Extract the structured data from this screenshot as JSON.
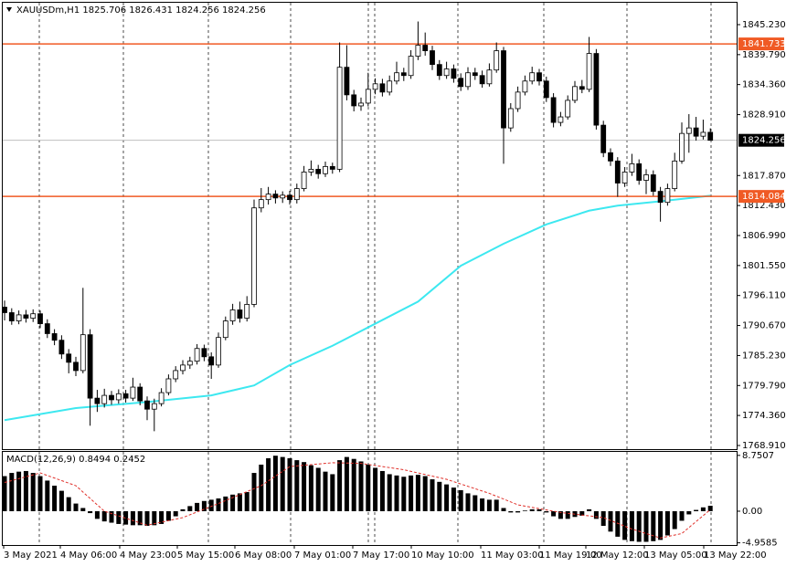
{
  "chart_data": [
    {
      "type": "candlestick",
      "title": "XAUUSDm,H1  1825.706 1826.431 1824.256 1824.256",
      "ylim": [
        1768.25,
        1849.2
      ],
      "yticks": [
        {
          "value": 1845.23,
          "label": "1845.230"
        },
        {
          "value": 1839.79,
          "label": "1839.790"
        },
        {
          "value": 1834.36,
          "label": "1834.360"
        },
        {
          "value": 1828.91,
          "label": "1828.910"
        },
        {
          "value": 1817.87,
          "label": "1817.870"
        },
        {
          "value": 1812.43,
          "label": "1812.430"
        },
        {
          "value": 1806.99,
          "label": "1806.990"
        },
        {
          "value": 1801.55,
          "label": "1801.550"
        },
        {
          "value": 1796.11,
          "label": "1796.110"
        },
        {
          "value": 1790.67,
          "label": "1790.670"
        },
        {
          "value": 1785.23,
          "label": "1785.230"
        },
        {
          "value": 1779.79,
          "label": "1779.790"
        },
        {
          "value": 1774.36,
          "label": "1774.360"
        },
        {
          "value": 1768.91,
          "label": "1768.910"
        }
      ],
      "up_color": "#ffffff",
      "down_color": "#000000",
      "candles": [
        [
          1794.0,
          1795.2,
          1791.6,
          1793.0
        ],
        [
          1793.0,
          1793.8,
          1790.8,
          1791.5
        ],
        [
          1791.5,
          1793.4,
          1790.9,
          1792.6
        ],
        [
          1792.6,
          1793.5,
          1791.2,
          1792.0
        ],
        [
          1792.0,
          1793.6,
          1791.3,
          1792.8
        ],
        [
          1792.8,
          1793.4,
          1790.2,
          1791.0
        ],
        [
          1791.0,
          1791.8,
          1788.4,
          1789.2
        ],
        [
          1789.2,
          1790.0,
          1787.1,
          1788.0
        ],
        [
          1788.0,
          1788.9,
          1784.6,
          1785.5
        ],
        [
          1785.5,
          1786.4,
          1782.0,
          1784.0
        ],
        [
          1784.0,
          1785.0,
          1781.5,
          1782.5
        ],
        [
          1782.5,
          1797.5,
          1782.0,
          1789.0
        ],
        [
          1789.0,
          1790.0,
          1772.5,
          1777.5
        ],
        [
          1777.5,
          1779.0,
          1775.0,
          1776.5
        ],
        [
          1776.5,
          1779.2,
          1775.8,
          1778.0
        ],
        [
          1778.0,
          1778.8,
          1776.3,
          1777.2
        ],
        [
          1777.2,
          1779.1,
          1776.5,
          1778.3
        ],
        [
          1778.3,
          1779.0,
          1776.7,
          1777.5
        ],
        [
          1777.5,
          1781.2,
          1777.0,
          1779.5
        ],
        [
          1779.5,
          1780.2,
          1776.2,
          1777.0
        ],
        [
          1777.0,
          1777.8,
          1773.5,
          1775.5
        ],
        [
          1775.5,
          1777.4,
          1771.5,
          1776.5
        ],
        [
          1776.5,
          1779.3,
          1776.0,
          1778.5
        ],
        [
          1778.5,
          1781.8,
          1778.0,
          1781.0
        ],
        [
          1781.0,
          1783.3,
          1780.4,
          1782.5
        ],
        [
          1782.5,
          1784.4,
          1781.8,
          1783.5
        ],
        [
          1783.5,
          1785.0,
          1782.8,
          1784.2
        ],
        [
          1784.2,
          1787.3,
          1783.6,
          1786.5
        ],
        [
          1786.5,
          1787.2,
          1784.2,
          1785.0
        ],
        [
          1785.0,
          1785.8,
          1781.0,
          1783.5
        ],
        [
          1783.5,
          1789.4,
          1783.0,
          1788.5
        ],
        [
          1788.5,
          1792.3,
          1788.0,
          1791.5
        ],
        [
          1791.5,
          1794.6,
          1790.8,
          1793.5
        ],
        [
          1793.5,
          1795.0,
          1791.2,
          1792.0
        ],
        [
          1792.0,
          1796.0,
          1791.4,
          1794.5
        ],
        [
          1794.5,
          1813.5,
          1794.0,
          1812.0
        ],
        [
          1812.0,
          1815.6,
          1811.2,
          1813.5
        ],
        [
          1813.5,
          1815.8,
          1812.6,
          1814.5
        ],
        [
          1814.5,
          1815.2,
          1812.8,
          1813.8
        ],
        [
          1813.8,
          1815.0,
          1812.9,
          1814.3
        ],
        [
          1814.3,
          1815.1,
          1812.6,
          1813.5
        ],
        [
          1813.5,
          1816.4,
          1812.8,
          1815.5
        ],
        [
          1815.5,
          1819.6,
          1815.0,
          1818.5
        ],
        [
          1818.5,
          1820.6,
          1817.8,
          1819.0
        ],
        [
          1819.0,
          1819.8,
          1817.3,
          1818.2
        ],
        [
          1818.2,
          1820.4,
          1817.6,
          1819.5
        ],
        [
          1819.5,
          1820.2,
          1818.2,
          1819.0
        ],
        [
          1819.0,
          1842.0,
          1818.5,
          1837.5
        ],
        [
          1837.5,
          1841.5,
          1831.5,
          1832.5
        ],
        [
          1832.5,
          1833.4,
          1829.5,
          1830.5
        ],
        [
          1830.5,
          1832.0,
          1829.6,
          1831.0
        ],
        [
          1831.0,
          1836.5,
          1830.4,
          1833.5
        ],
        [
          1833.5,
          1835.5,
          1832.6,
          1834.5
        ],
        [
          1834.5,
          1835.4,
          1832.2,
          1833.0
        ],
        [
          1833.0,
          1836.0,
          1832.4,
          1835.0
        ],
        [
          1835.0,
          1838.5,
          1834.4,
          1836.5
        ],
        [
          1836.5,
          1837.4,
          1835.0,
          1836.0
        ],
        [
          1836.0,
          1840.6,
          1835.4,
          1839.5
        ],
        [
          1839.5,
          1845.8,
          1838.8,
          1841.5
        ],
        [
          1841.5,
          1843.8,
          1839.6,
          1840.5
        ],
        [
          1840.5,
          1841.4,
          1837.0,
          1838.0
        ],
        [
          1838.0,
          1838.8,
          1835.2,
          1836.0
        ],
        [
          1836.0,
          1838.5,
          1835.4,
          1837.2
        ],
        [
          1837.2,
          1838.0,
          1834.7,
          1835.5
        ],
        [
          1835.5,
          1836.4,
          1833.2,
          1834.0
        ],
        [
          1834.0,
          1837.5,
          1833.4,
          1836.5
        ],
        [
          1836.5,
          1837.4,
          1835.2,
          1836.0
        ],
        [
          1836.0,
          1836.9,
          1833.8,
          1834.5
        ],
        [
          1834.5,
          1838.2,
          1834.0,
          1837.0
        ],
        [
          1837.0,
          1842.0,
          1836.5,
          1840.5
        ],
        [
          1840.5,
          1841.2,
          1820.0,
          1826.5
        ],
        [
          1826.5,
          1831.0,
          1825.8,
          1830.0
        ],
        [
          1830.0,
          1834.0,
          1829.4,
          1833.0
        ],
        [
          1833.0,
          1836.0,
          1832.4,
          1835.0
        ],
        [
          1835.0,
          1837.6,
          1834.4,
          1836.5
        ],
        [
          1836.5,
          1837.2,
          1834.2,
          1835.0
        ],
        [
          1835.0,
          1835.8,
          1831.2,
          1832.0
        ],
        [
          1832.0,
          1832.8,
          1826.6,
          1827.5
        ],
        [
          1827.5,
          1829.4,
          1826.8,
          1828.5
        ],
        [
          1828.5,
          1832.4,
          1828.0,
          1831.5
        ],
        [
          1831.5,
          1835.0,
          1831.0,
          1834.0
        ],
        [
          1834.0,
          1835.2,
          1832.8,
          1833.5
        ],
        [
          1833.5,
          1843.0,
          1833.0,
          1840.0
        ],
        [
          1840.0,
          1840.8,
          1826.2,
          1827.0
        ],
        [
          1827.0,
          1827.8,
          1821.2,
          1822.0
        ],
        [
          1822.0,
          1822.8,
          1819.6,
          1820.5
        ],
        [
          1820.5,
          1821.2,
          1814.0,
          1816.5
        ],
        [
          1816.5,
          1819.4,
          1815.8,
          1818.5
        ],
        [
          1818.5,
          1821.8,
          1817.8,
          1820.0
        ],
        [
          1820.0,
          1820.8,
          1816.2,
          1817.0
        ],
        [
          1817.0,
          1819.0,
          1814.5,
          1818.0
        ],
        [
          1818.0,
          1818.8,
          1814.2,
          1815.0
        ],
        [
          1815.0,
          1815.8,
          1809.5,
          1813.0
        ],
        [
          1813.0,
          1816.4,
          1812.4,
          1815.5
        ],
        [
          1815.5,
          1822.0,
          1815.0,
          1820.5
        ],
        [
          1820.5,
          1827.5,
          1820.0,
          1825.5
        ],
        [
          1825.5,
          1829.0,
          1822.0,
          1826.5
        ],
        [
          1826.5,
          1828.5,
          1824.2,
          1825.0
        ],
        [
          1825.0,
          1828.0,
          1824.4,
          1825.7
        ],
        [
          1825.706,
          1826.431,
          1824.256,
          1824.256
        ]
      ],
      "ma": {
        "color": "#3de8f0",
        "x": [
          0,
          10,
          20,
          29,
          35,
          40,
          46,
          52,
          58,
          64,
          70,
          76,
          82,
          86,
          92,
          99
        ],
        "values": [
          1773.5,
          1775.7,
          1776.8,
          1778.0,
          1779.8,
          1783.5,
          1787.0,
          1791.0,
          1795.0,
          1801.5,
          1805.5,
          1809.0,
          1811.5,
          1812.4,
          1813.2,
          1814.2
        ]
      },
      "hlines": [
        {
          "value": 1841.733,
          "color": "#f05a24"
        },
        {
          "value": 1814.084,
          "color": "#f05a24"
        }
      ],
      "current_price": 1824.256,
      "current_color": "#000000"
    },
    {
      "type": "macd",
      "title": "MACD(12,26,9) 0.8494 0.2452",
      "ylim": [
        -5.3,
        9.3
      ],
      "yticks": [
        8.7507,
        {
          "value": 0,
          "label": "0.00"
        },
        -4.9585
      ],
      "color": "#000000",
      "signal_color": "#e0302a",
      "values": [
        5.5,
        6,
        6.2,
        6.3,
        6,
        5.5,
        4.8,
        4,
        3.2,
        2.2,
        1.2,
        0.5,
        -0.3,
        -1.2,
        -1.6,
        -1.8,
        -2,
        -2.1,
        -2.2,
        -2.2,
        -2.3,
        -2.2,
        -2,
        -1.5,
        -0.8,
        0.3,
        0.8,
        1.3,
        1.6,
        1.8,
        2,
        2.3,
        2.6,
        2.8,
        3,
        6,
        7.3,
        8.3,
        8.7,
        8.5,
        8.3,
        8,
        7.7,
        7.2,
        6.8,
        6.2,
        5.8,
        8,
        8.5,
        8.2,
        7.8,
        7.3,
        6.8,
        6.3,
        5.8,
        5.6,
        5.4,
        5.6,
        5.7,
        5.5,
        5,
        4.6,
        4.2,
        3.7,
        3.3,
        2.8,
        2.5,
        2,
        1.8,
        1.8,
        0.5,
        -0.2,
        -0.2,
        0.1,
        0.3,
        0.3,
        -0.2,
        -0.8,
        -1.2,
        -1.2,
        -0.9,
        -0.7,
        0.3,
        -1.2,
        -2.3,
        -3.2,
        -4,
        -4.5,
        -4.7,
        -4.8,
        -4.8,
        -4.7,
        -4.5,
        -3.8,
        -2.8,
        -1.5,
        -0.5,
        0.2,
        0.6,
        0.8494
      ],
      "signal": {
        "x": [
          0,
          5,
          10,
          14,
          20,
          25,
          30,
          36,
          40,
          46,
          50,
          56,
          62,
          68,
          72,
          78,
          84,
          88,
          92,
          95,
          99
        ],
        "values": [
          4.5,
          6,
          4,
          0,
          -2.2,
          -1,
          1.2,
          4,
          7,
          7.6,
          7.5,
          6.5,
          5,
          2.8,
          1,
          -0.2,
          -1,
          -2.8,
          -4.2,
          -3.5,
          0.2452
        ]
      },
      "x_labels": [
        "3 May 2021",
        "4 May 06:00",
        "4 May 23:00",
        "5 May 15:00",
        "6 May 08:00",
        "7 May 01:00",
        "7 May 17:00",
        "10 May 10:00",
        "11 May 03:00",
        "11 May 19:00",
        "12 May 12:00",
        "13 May 05:00",
        "13 May 22:00"
      ]
    }
  ]
}
